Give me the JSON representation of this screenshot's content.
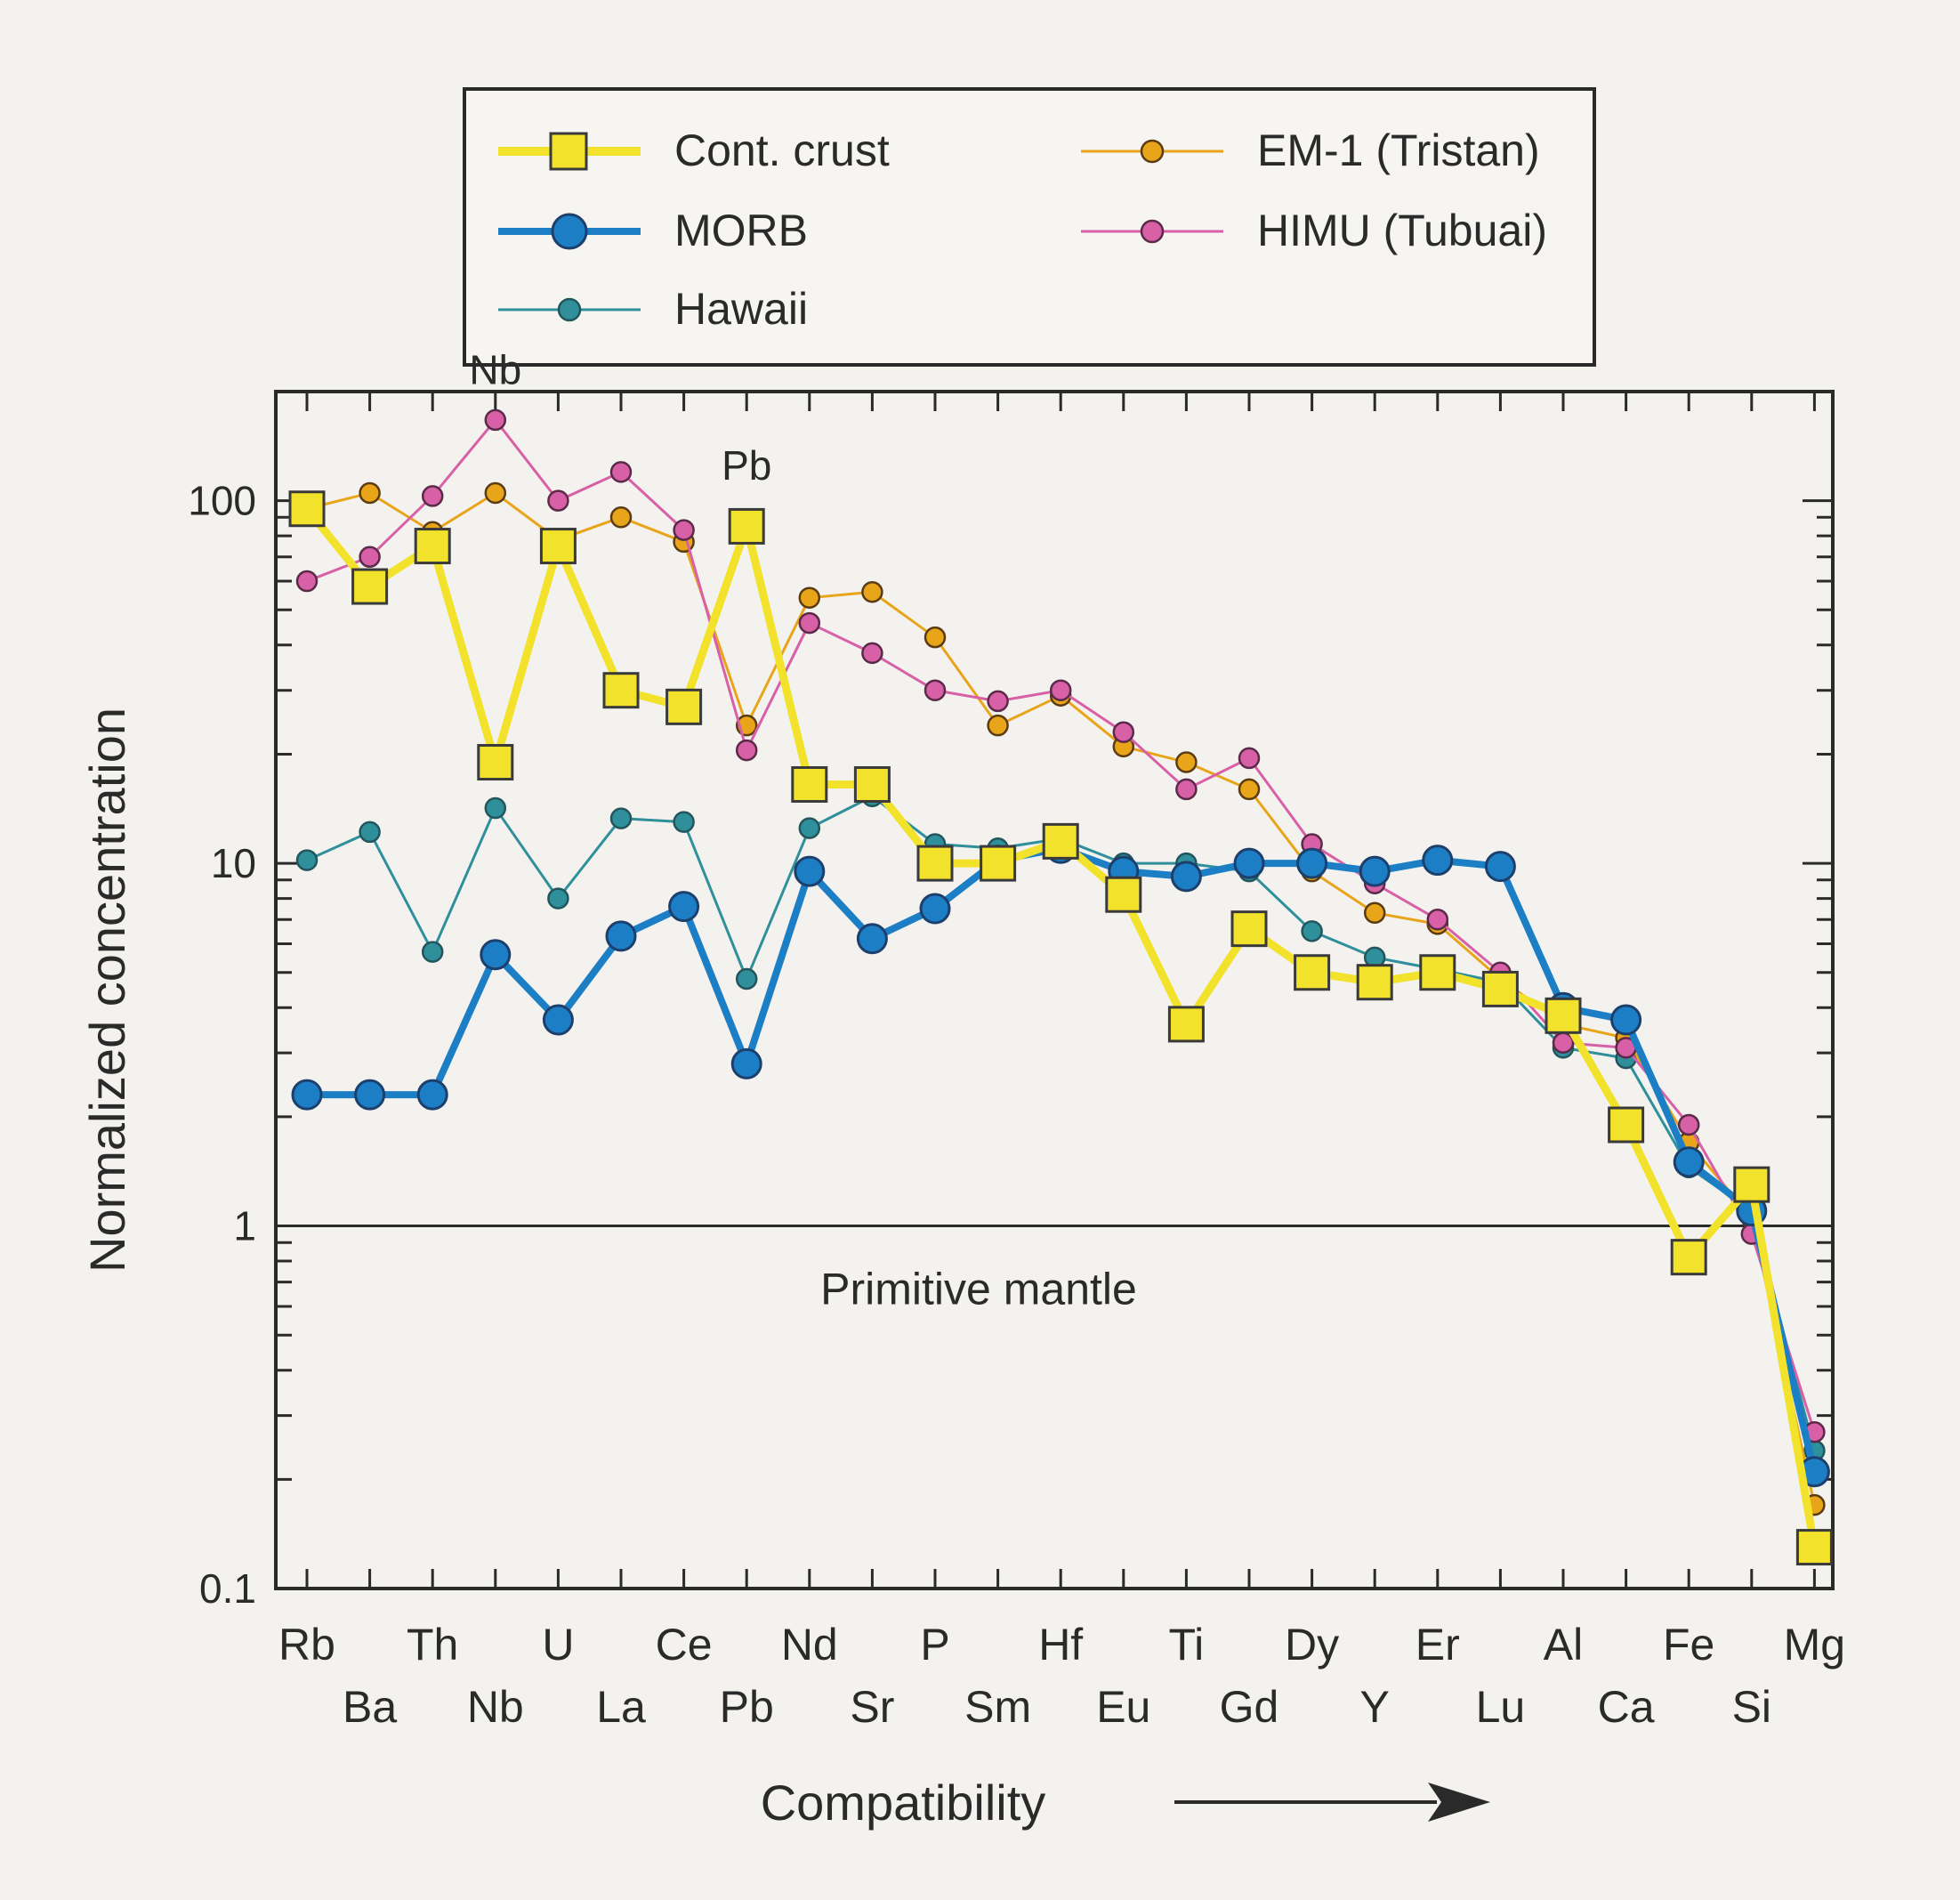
{
  "chart_data": {
    "type": "line",
    "ylabel": "Normalized concentration",
    "xlabel": "Compatibility",
    "ylog": true,
    "ylim": [
      0.1,
      200
    ],
    "y_ticks": [
      "0.1",
      "1",
      "10",
      "100"
    ],
    "reference_line": {
      "value": 1,
      "label": "Primitive mantle"
    },
    "categories": [
      "Rb",
      "Ba",
      "Th",
      "Nb",
      "U",
      "La",
      "Ce",
      "Pb",
      "Nd",
      "Sr",
      "P",
      "Sm",
      "Hf",
      "Eu",
      "Ti",
      "Gd",
      "Dy",
      "Y",
      "Er",
      "Lu",
      "Al",
      "Ca",
      "Fe",
      "Si",
      "Mg"
    ],
    "annotations": [
      {
        "text": "Nb",
        "category": "Nb",
        "value": 230
      },
      {
        "text": "Pb",
        "category": "Pb",
        "value": 125
      }
    ],
    "legend_placement": "top",
    "series": [
      {
        "name": "Cont. crust",
        "color": "#f2e22c",
        "edge": "#3a3a3a",
        "marker": "square",
        "width": 9,
        "values": [
          95,
          58,
          75,
          19,
          75,
          30,
          27,
          85,
          16.5,
          16.5,
          10,
          10,
          11.5,
          8.2,
          3.6,
          6.6,
          5,
          4.7,
          5,
          4.5,
          3.8,
          1.9,
          0.82,
          1.3,
          0.13
        ]
      },
      {
        "name": "MORB",
        "color": "#1c7fc6",
        "edge": "#1d3f6c",
        "marker": "circle-large",
        "width": 8,
        "values": [
          2.3,
          2.3,
          2.3,
          5.6,
          3.7,
          6.3,
          7.6,
          2.8,
          9.5,
          6.2,
          7.5,
          10.2,
          11,
          9.5,
          9.2,
          10,
          10,
          9.5,
          10.2,
          9.8,
          4,
          3.7,
          1.5,
          1.1,
          0.21
        ]
      },
      {
        "name": "Hawaii",
        "color": "#2f8f9b",
        "edge": "#23555c",
        "marker": "circle-small",
        "width": 3,
        "values": [
          10.2,
          12.2,
          5.7,
          14.2,
          8,
          13.3,
          13,
          4.8,
          12.5,
          15.3,
          11.3,
          11,
          11.7,
          10,
          10,
          9.5,
          6.5,
          5.5,
          5.1,
          4.7,
          3.1,
          2.9,
          1.45,
          1.1,
          0.24
        ]
      },
      {
        "name": "EM-1 (Tristan)",
        "color": "#e8a51a",
        "edge": "#5a3b12",
        "marker": "circle-small",
        "width": 3,
        "values": [
          95,
          105,
          82,
          105,
          78,
          90,
          77,
          24,
          54,
          56,
          42,
          24,
          29,
          21,
          19,
          16,
          9.5,
          7.3,
          6.8,
          4.8,
          3.6,
          3.3,
          1.7,
          1.05,
          0.17
        ]
      },
      {
        "name": "HIMU (Tubuai)",
        "color": "#d860a6",
        "edge": "#5a2a48",
        "marker": "circle-small",
        "width": 3,
        "values": [
          60,
          70,
          103,
          167,
          100,
          120,
          83,
          20.5,
          46,
          38,
          30,
          28,
          30,
          23,
          16,
          19.5,
          11.3,
          8.8,
          7,
          5,
          3.2,
          3.1,
          1.9,
          0.95,
          0.27
        ]
      }
    ]
  }
}
